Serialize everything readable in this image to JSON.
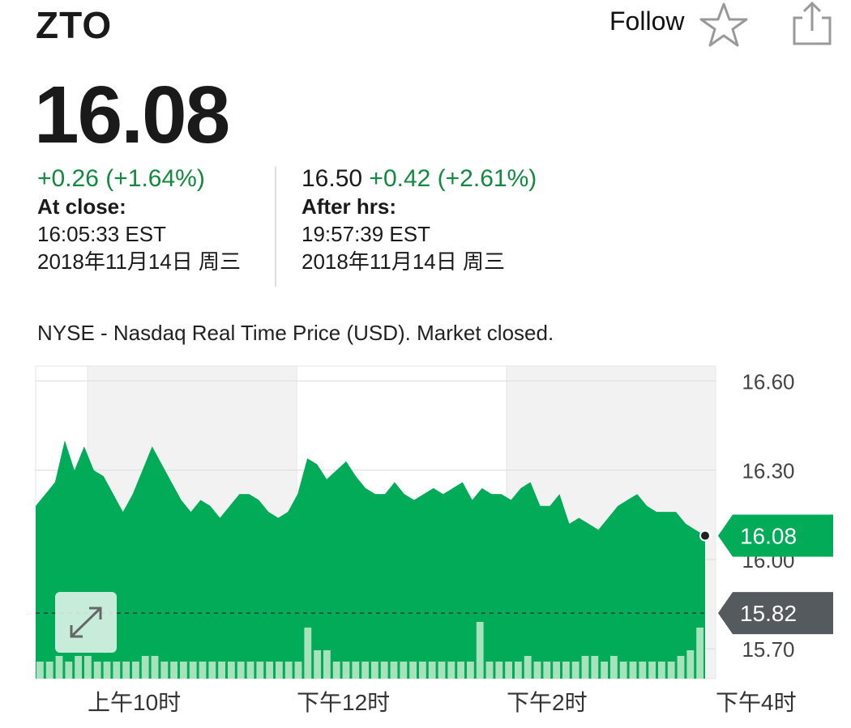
{
  "header": {
    "ticker": "ZTO",
    "follow_label": "Follow"
  },
  "quote": {
    "price": "16.08",
    "change": "+0.26 (+1.64%)",
    "close_label": "At close:",
    "close_time": "16:05:33 EST",
    "close_date": "2018年11月14日 周三",
    "after_price": "16.50",
    "after_change": "+0.42 (+2.61%)",
    "after_label": "After hrs:",
    "after_time": "19:57:39 EST",
    "after_date": "2018年11月14日 周三"
  },
  "notice": "NYSE - Nasdaq Real Time Price (USD). Market closed.",
  "colors": {
    "up_green": "#11893f",
    "area_green": "#02ab57",
    "badge_gray": "#555a5f",
    "volume_green": "#a7e2bd"
  },
  "icons": {
    "follow": "star-icon",
    "share": "share-icon",
    "expand": "expand-icon"
  },
  "chart_data": {
    "type": "area",
    "x_labels": [
      "上午10时",
      "下午12时",
      "下午2时",
      "下午4时"
    ],
    "y_ticks": [
      "16.60",
      "16.30",
      "16.00",
      "15.70"
    ],
    "ylim": [
      15.6,
      16.65
    ],
    "current_price_label": "16.08",
    "previous_close_label": "15.82",
    "current_price": 16.08,
    "previous_close": 15.82,
    "grid": true,
    "series": [
      {
        "values": [
          16.18,
          16.22,
          16.26,
          16.4,
          16.3,
          16.38,
          16.3,
          16.28,
          16.22,
          16.16,
          16.22,
          16.3,
          16.38,
          16.32,
          16.26,
          16.2,
          16.16,
          16.2,
          16.18,
          16.14,
          16.18,
          16.22,
          16.22,
          16.2,
          16.16,
          16.14,
          16.16,
          16.22,
          16.34,
          16.32,
          16.27,
          16.3,
          16.33,
          16.28,
          16.24,
          16.22,
          16.22,
          16.26,
          16.22,
          16.2,
          16.22,
          16.24,
          16.22,
          16.24,
          16.26,
          16.2,
          16.24,
          16.22,
          16.22,
          16.2,
          16.24,
          16.26,
          16.18,
          16.18,
          16.22,
          16.12,
          16.14,
          16.12,
          16.1,
          16.14,
          16.18,
          16.2,
          16.22,
          16.18,
          16.16,
          16.16,
          16.16,
          16.12,
          16.1,
          16.08
        ],
        "volume": [
          3,
          3,
          4,
          3,
          4,
          4,
          3,
          3,
          3,
          3,
          3,
          4,
          4,
          3,
          3,
          3,
          3,
          3,
          3,
          3,
          3,
          3,
          3,
          3,
          3,
          3,
          3,
          3,
          9,
          5,
          5,
          3,
          3,
          3,
          3,
          3,
          3,
          3,
          3,
          3,
          3,
          3,
          3,
          3,
          3,
          3,
          10,
          3,
          3,
          3,
          3,
          4,
          3,
          3,
          3,
          3,
          3,
          4,
          4,
          3,
          4,
          3,
          3,
          3,
          3,
          3,
          3,
          4,
          5,
          9
        ]
      }
    ]
  }
}
